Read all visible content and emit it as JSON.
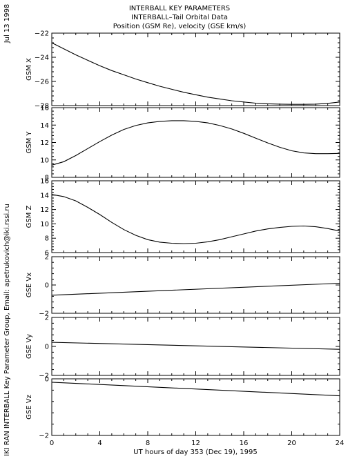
{
  "header": {
    "lines": [
      "INTERBALL KEY PARAMETERS",
      "INTERBALL–Tail Orbital Data",
      "Position (GSM Re), velocity (GSE km/s)"
    ]
  },
  "side_texts": {
    "date": "Jul 13 1998",
    "credit": "IKI RAN INTERBALL Key Parameter Group, Email: apetrukovich@iki.rssi.ru"
  },
  "chart_data": {
    "type": "line",
    "xlabel": "UT hours of day 353 (Dec 19), 1995",
    "xlim": [
      0,
      24
    ],
    "xticks": [
      0,
      4,
      8,
      12,
      16,
      20,
      24
    ],
    "panels": [
      {
        "ylabel": "GSM X",
        "ylim": [
          -28,
          -22
        ],
        "yticks": [
          -22,
          -24,
          -26,
          -28
        ],
        "x": [
          0,
          1,
          2,
          3,
          4,
          5,
          6,
          7,
          8,
          9,
          10,
          11,
          12,
          13,
          14,
          15,
          16,
          17,
          18,
          19,
          20,
          21,
          22,
          23,
          24
        ],
        "y": [
          -22.8,
          -23.3,
          -23.8,
          -24.25,
          -24.7,
          -25.1,
          -25.45,
          -25.8,
          -26.1,
          -26.4,
          -26.65,
          -26.9,
          -27.1,
          -27.3,
          -27.45,
          -27.6,
          -27.7,
          -27.8,
          -27.85,
          -27.88,
          -27.9,
          -27.9,
          -27.88,
          -27.82,
          -27.7
        ]
      },
      {
        "ylabel": "GSM Y",
        "ylim": [
          8,
          16
        ],
        "yticks": [
          16,
          14,
          12,
          10,
          8
        ],
        "x": [
          0,
          1,
          2,
          3,
          4,
          5,
          6,
          7,
          8,
          9,
          10,
          11,
          12,
          13,
          14,
          15,
          16,
          17,
          18,
          19,
          20,
          21,
          22,
          23,
          24
        ],
        "y": [
          9.4,
          9.8,
          10.5,
          11.3,
          12.1,
          12.85,
          13.5,
          13.95,
          14.25,
          14.42,
          14.5,
          14.5,
          14.42,
          14.25,
          13.95,
          13.55,
          13.05,
          12.5,
          11.95,
          11.45,
          11.05,
          10.8,
          10.72,
          10.72,
          10.75
        ]
      },
      {
        "ylabel": "GSM Z",
        "ylim": [
          6,
          16
        ],
        "yticks": [
          16,
          14,
          12,
          10,
          8,
          6
        ],
        "x": [
          0,
          1,
          2,
          3,
          4,
          5,
          6,
          7,
          8,
          9,
          10,
          11,
          12,
          13,
          14,
          15,
          16,
          17,
          18,
          19,
          20,
          21,
          22,
          23,
          24
        ],
        "y": [
          14.1,
          13.8,
          13.2,
          12.3,
          11.3,
          10.2,
          9.2,
          8.4,
          7.8,
          7.45,
          7.3,
          7.25,
          7.3,
          7.5,
          7.8,
          8.2,
          8.6,
          9.0,
          9.3,
          9.5,
          9.65,
          9.7,
          9.6,
          9.35,
          9.0
        ]
      },
      {
        "ylabel": "GSE Vx",
        "ylim": [
          -2,
          2
        ],
        "yticks": [
          2,
          0,
          -2
        ],
        "x": [
          0,
          24
        ],
        "y": [
          -0.72,
          0.12
        ]
      },
      {
        "ylabel": "GSE Vy",
        "ylim": [
          -2,
          2
        ],
        "yticks": [
          2,
          0,
          -2
        ],
        "x": [
          0,
          24
        ],
        "y": [
          0.28,
          -0.2
        ]
      },
      {
        "ylabel": "GSE Vz",
        "ylim": [
          -2,
          0
        ],
        "yticks": [
          0,
          -2
        ],
        "x": [
          0,
          24
        ],
        "y": [
          -0.12,
          -0.6
        ]
      }
    ]
  }
}
